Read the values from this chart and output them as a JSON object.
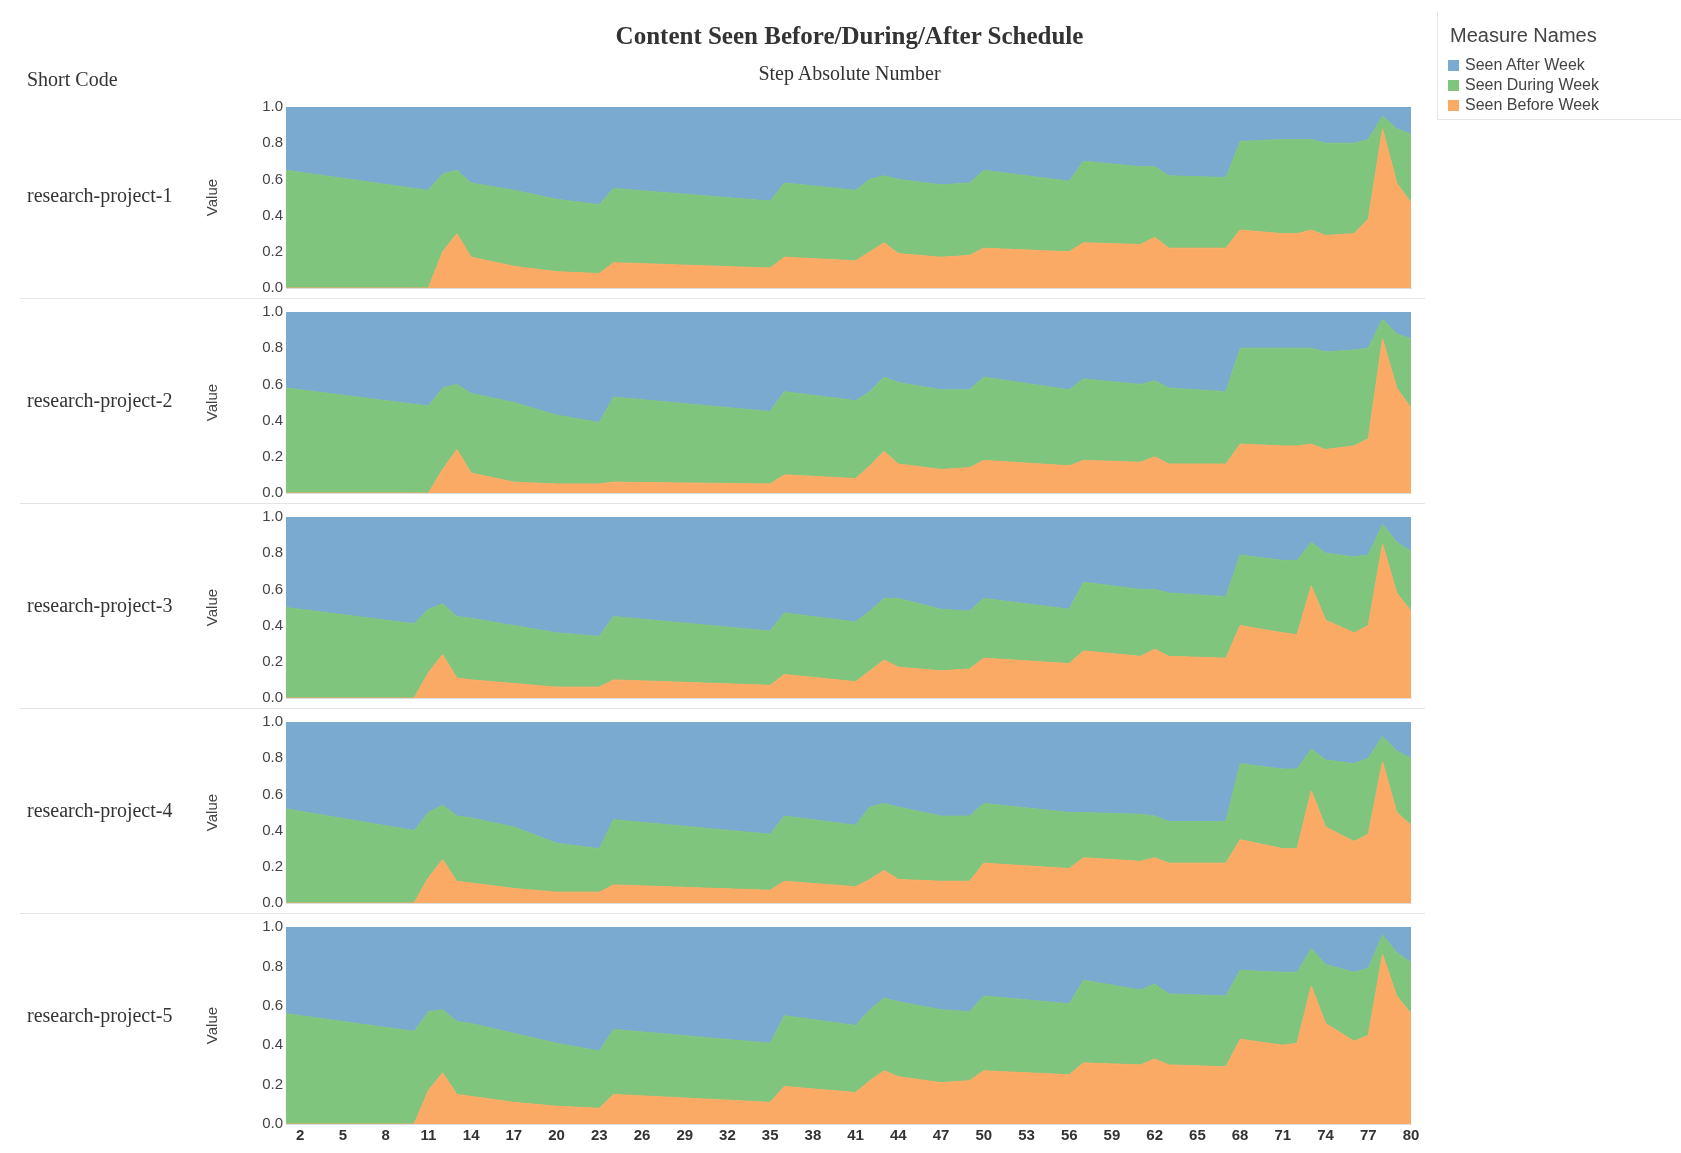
{
  "chart_data": [
    {
      "type": "area",
      "title": "Content Seen Before/During/After Schedule",
      "xlabel": "Step Absolute Number",
      "legend_title": "Measure Names",
      "legend": "right",
      "annotations": [
        "Short Code"
      ],
      "subtitle": "research-project-1",
      "ylabel": "Value",
      "stacked": true,
      "tick_labels": "y",
      "xlim": [
        1,
        80
      ],
      "xticks": [
        2,
        5,
        8,
        11,
        14,
        17,
        20,
        23,
        26,
        29,
        32,
        35,
        38,
        41,
        44,
        47,
        50,
        53,
        56,
        59,
        62,
        65,
        68,
        71,
        74,
        77,
        80
      ],
      "ylim": [
        0,
        1
      ],
      "yticks": [
        {
          "value": 0,
          "label": "0.0"
        },
        {
          "value": 0.2,
          "label": "0.2"
        },
        {
          "value": 0.4,
          "label": "0.4"
        },
        {
          "value": 0.6,
          "label": "0.6"
        },
        {
          "value": 0.8,
          "label": "0.8"
        },
        {
          "value": 1,
          "label": "1.0"
        }
      ],
      "x": [
        1,
        10,
        11,
        12,
        13,
        14,
        17,
        20,
        23,
        24,
        35,
        36,
        41,
        42,
        43,
        44,
        47,
        49,
        50,
        56,
        57,
        61,
        62,
        63,
        67,
        68,
        71,
        72,
        73,
        74,
        76,
        77,
        78,
        79,
        80
      ],
      "series": [
        {
          "name": "Seen Before Week",
          "color": "#fbaa66",
          "values": [
            0,
            0,
            0,
            0.2,
            0.3,
            0.17,
            0.12,
            0.09,
            0.08,
            0.14,
            0.11,
            0.17,
            0.15,
            0.2,
            0.25,
            0.19,
            0.17,
            0.18,
            0.22,
            0.2,
            0.25,
            0.24,
            0.28,
            0.22,
            0.22,
            0.32,
            0.3,
            0.3,
            0.32,
            0.29,
            0.3,
            0.38,
            0.88,
            0.58,
            0.47
          ]
        },
        {
          "name": "Seen During Week",
          "color": "#80c57d",
          "values": [
            0.65,
            0.55,
            0.54,
            0.43,
            0.35,
            0.41,
            0.42,
            0.4,
            0.38,
            0.41,
            0.37,
            0.41,
            0.39,
            0.4,
            0.37,
            0.41,
            0.4,
            0.4,
            0.43,
            0.39,
            0.45,
            0.43,
            0.39,
            0.4,
            0.39,
            0.49,
            0.52,
            0.52,
            0.5,
            0.51,
            0.5,
            0.44,
            0.07,
            0.3,
            0.38
          ]
        },
        {
          "name": "Seen After Week",
          "color": "#7aaad0",
          "values": [
            0.35,
            0.45,
            0.46,
            0.37,
            0.35,
            0.42,
            0.46,
            0.51,
            0.54,
            0.45,
            0.52,
            0.42,
            0.46,
            0.4,
            0.38,
            0.4,
            0.43,
            0.42,
            0.35,
            0.41,
            0.3,
            0.33,
            0.33,
            0.38,
            0.39,
            0.19,
            0.18,
            0.18,
            0.18,
            0.2,
            0.2,
            0.18,
            0.05,
            0.12,
            0.15
          ]
        }
      ]
    },
    {
      "type": "area",
      "subtitle": "research-project-2",
      "ylabel": "Value",
      "stacked": true,
      "tick_labels": "y",
      "xlim": [
        1,
        80
      ],
      "xticks": [
        2,
        5,
        8,
        11,
        14,
        17,
        20,
        23,
        26,
        29,
        32,
        35,
        38,
        41,
        44,
        47,
        50,
        53,
        56,
        59,
        62,
        65,
        68,
        71,
        74,
        77,
        80
      ],
      "ylim": [
        0,
        1
      ],
      "yticks": [
        {
          "value": 0,
          "label": "0.0"
        },
        {
          "value": 0.2,
          "label": "0.2"
        },
        {
          "value": 0.4,
          "label": "0.4"
        },
        {
          "value": 0.6,
          "label": "0.6"
        },
        {
          "value": 0.8,
          "label": "0.8"
        },
        {
          "value": 1,
          "label": "1.0"
        }
      ],
      "x": [
        1,
        10,
        11,
        12,
        13,
        14,
        17,
        20,
        23,
        24,
        35,
        36,
        41,
        42,
        43,
        44,
        47,
        49,
        50,
        56,
        57,
        61,
        62,
        63,
        67,
        68,
        71,
        72,
        73,
        74,
        76,
        77,
        78,
        79,
        80
      ],
      "series": [
        {
          "color": "#fbaa66",
          "values": [
            0,
            0,
            0,
            0.13,
            0.24,
            0.11,
            0.06,
            0.05,
            0.05,
            0.06,
            0.05,
            0.1,
            0.08,
            0.15,
            0.23,
            0.16,
            0.13,
            0.14,
            0.18,
            0.15,
            0.18,
            0.17,
            0.2,
            0.16,
            0.16,
            0.27,
            0.26,
            0.26,
            0.27,
            0.24,
            0.26,
            0.3,
            0.85,
            0.58,
            0.47
          ]
        },
        {
          "color": "#80c57d",
          "values": [
            0.58,
            0.49,
            0.48,
            0.45,
            0.36,
            0.44,
            0.44,
            0.38,
            0.34,
            0.47,
            0.4,
            0.46,
            0.43,
            0.41,
            0.41,
            0.45,
            0.44,
            0.43,
            0.46,
            0.42,
            0.45,
            0.43,
            0.42,
            0.42,
            0.4,
            0.53,
            0.54,
            0.54,
            0.53,
            0.54,
            0.53,
            0.5,
            0.11,
            0.3,
            0.38
          ]
        },
        {
          "color": "#7aaad0",
          "values": [
            0.42,
            0.51,
            0.52,
            0.42,
            0.4,
            0.45,
            0.5,
            0.57,
            0.61,
            0.47,
            0.55,
            0.44,
            0.49,
            0.44,
            0.36,
            0.39,
            0.43,
            0.43,
            0.36,
            0.43,
            0.37,
            0.4,
            0.38,
            0.42,
            0.44,
            0.2,
            0.2,
            0.2,
            0.2,
            0.22,
            0.21,
            0.2,
            0.04,
            0.12,
            0.15
          ]
        }
      ]
    },
    {
      "type": "area",
      "subtitle": "research-project-3",
      "ylabel": "Value",
      "stacked": true,
      "tick_labels": "y",
      "xlim": [
        1,
        80
      ],
      "xticks": [
        2,
        5,
        8,
        11,
        14,
        17,
        20,
        23,
        26,
        29,
        32,
        35,
        38,
        41,
        44,
        47,
        50,
        53,
        56,
        59,
        62,
        65,
        68,
        71,
        74,
        77,
        80
      ],
      "ylim": [
        0,
        1
      ],
      "yticks": [
        {
          "value": 0,
          "label": "0.0"
        },
        {
          "value": 0.2,
          "label": "0.2"
        },
        {
          "value": 0.4,
          "label": "0.4"
        },
        {
          "value": 0.6,
          "label": "0.6"
        },
        {
          "value": 0.8,
          "label": "0.8"
        },
        {
          "value": 1,
          "label": "1.0"
        }
      ],
      "x": [
        1,
        10,
        11,
        12,
        13,
        14,
        17,
        20,
        23,
        24,
        35,
        36,
        41,
        42,
        43,
        44,
        47,
        49,
        50,
        56,
        57,
        61,
        62,
        63,
        67,
        68,
        71,
        72,
        73,
        74,
        76,
        77,
        78,
        79,
        80
      ],
      "series": [
        {
          "color": "#fbaa66",
          "values": [
            0,
            0,
            0.14,
            0.24,
            0.11,
            0.1,
            0.08,
            0.06,
            0.06,
            0.1,
            0.07,
            0.13,
            0.09,
            0.15,
            0.21,
            0.17,
            0.15,
            0.16,
            0.22,
            0.19,
            0.26,
            0.23,
            0.27,
            0.23,
            0.22,
            0.4,
            0.36,
            0.35,
            0.62,
            0.43,
            0.36,
            0.4,
            0.85,
            0.58,
            0.48
          ]
        },
        {
          "color": "#80c57d",
          "values": [
            0.5,
            0.41,
            0.35,
            0.28,
            0.34,
            0.34,
            0.32,
            0.3,
            0.28,
            0.35,
            0.3,
            0.34,
            0.33,
            0.33,
            0.34,
            0.38,
            0.34,
            0.32,
            0.33,
            0.3,
            0.38,
            0.37,
            0.33,
            0.35,
            0.34,
            0.39,
            0.4,
            0.41,
            0.24,
            0.37,
            0.42,
            0.39,
            0.11,
            0.28,
            0.33
          ]
        },
        {
          "color": "#7aaad0",
          "values": [
            0.5,
            0.59,
            0.51,
            0.48,
            0.55,
            0.56,
            0.6,
            0.64,
            0.66,
            0.55,
            0.63,
            0.53,
            0.58,
            0.52,
            0.45,
            0.45,
            0.51,
            0.52,
            0.45,
            0.51,
            0.36,
            0.4,
            0.4,
            0.42,
            0.44,
            0.21,
            0.24,
            0.24,
            0.14,
            0.2,
            0.22,
            0.21,
            0.04,
            0.14,
            0.19
          ]
        }
      ]
    },
    {
      "type": "area",
      "subtitle": "research-project-4",
      "ylabel": "Value",
      "stacked": true,
      "tick_labels": "y",
      "xlim": [
        1,
        80
      ],
      "xticks": [
        2,
        5,
        8,
        11,
        14,
        17,
        20,
        23,
        26,
        29,
        32,
        35,
        38,
        41,
        44,
        47,
        50,
        53,
        56,
        59,
        62,
        65,
        68,
        71,
        74,
        77,
        80
      ],
      "ylim": [
        0,
        1
      ],
      "yticks": [
        {
          "value": 0,
          "label": "0.0"
        },
        {
          "value": 0.2,
          "label": "0.2"
        },
        {
          "value": 0.4,
          "label": "0.4"
        },
        {
          "value": 0.6,
          "label": "0.6"
        },
        {
          "value": 0.8,
          "label": "0.8"
        },
        {
          "value": 1,
          "label": "1.0"
        }
      ],
      "x": [
        1,
        10,
        11,
        12,
        13,
        14,
        17,
        20,
        23,
        24,
        35,
        36,
        41,
        42,
        43,
        44,
        47,
        49,
        50,
        56,
        57,
        61,
        62,
        63,
        67,
        68,
        71,
        72,
        73,
        74,
        76,
        77,
        78,
        79,
        80
      ],
      "series": [
        {
          "color": "#fbaa66",
          "values": [
            0,
            0,
            0.14,
            0.24,
            0.12,
            0.11,
            0.08,
            0.06,
            0.06,
            0.1,
            0.07,
            0.12,
            0.09,
            0.13,
            0.18,
            0.13,
            0.12,
            0.12,
            0.22,
            0.19,
            0.25,
            0.23,
            0.25,
            0.22,
            0.22,
            0.35,
            0.3,
            0.3,
            0.62,
            0.42,
            0.34,
            0.38,
            0.78,
            0.5,
            0.43
          ]
        },
        {
          "color": "#80c57d",
          "values": [
            0.52,
            0.4,
            0.36,
            0.3,
            0.36,
            0.36,
            0.34,
            0.27,
            0.24,
            0.36,
            0.31,
            0.36,
            0.34,
            0.4,
            0.37,
            0.4,
            0.36,
            0.36,
            0.33,
            0.31,
            0.25,
            0.26,
            0.23,
            0.23,
            0.23,
            0.42,
            0.44,
            0.44,
            0.23,
            0.37,
            0.43,
            0.42,
            0.14,
            0.34,
            0.37
          ]
        },
        {
          "color": "#7aaad0",
          "values": [
            0.48,
            0.6,
            0.5,
            0.46,
            0.52,
            0.53,
            0.58,
            0.67,
            0.7,
            0.54,
            0.62,
            0.52,
            0.57,
            0.47,
            0.45,
            0.47,
            0.52,
            0.52,
            0.45,
            0.5,
            0.5,
            0.51,
            0.52,
            0.55,
            0.55,
            0.23,
            0.26,
            0.26,
            0.15,
            0.21,
            0.23,
            0.2,
            0.08,
            0.16,
            0.2
          ]
        }
      ]
    },
    {
      "type": "area",
      "subtitle": "research-project-5",
      "ylabel": "Value",
      "stacked": true,
      "xlim": [
        1,
        80
      ],
      "xticks": [
        2,
        5,
        8,
        11,
        14,
        17,
        20,
        23,
        26,
        29,
        32,
        35,
        38,
        41,
        44,
        47,
        50,
        53,
        56,
        59,
        62,
        65,
        68,
        71,
        74,
        77,
        80
      ],
      "ylim": [
        0,
        1
      ],
      "yticks": [
        {
          "value": 0,
          "label": "0.0"
        },
        {
          "value": 0.2,
          "label": "0.2"
        },
        {
          "value": 0.4,
          "label": "0.4"
        },
        {
          "value": 0.6,
          "label": "0.6"
        },
        {
          "value": 0.8,
          "label": "0.8"
        },
        {
          "value": 1,
          "label": "1.0"
        }
      ],
      "x": [
        1,
        10,
        11,
        12,
        13,
        14,
        17,
        20,
        23,
        24,
        35,
        36,
        41,
        42,
        43,
        44,
        47,
        49,
        50,
        56,
        57,
        61,
        62,
        63,
        67,
        68,
        71,
        72,
        73,
        74,
        76,
        77,
        78,
        79,
        80
      ],
      "series": [
        {
          "color": "#fbaa66",
          "values": [
            0,
            0,
            0.17,
            0.26,
            0.15,
            0.14,
            0.11,
            0.09,
            0.08,
            0.15,
            0.11,
            0.19,
            0.16,
            0.22,
            0.27,
            0.24,
            0.21,
            0.22,
            0.27,
            0.25,
            0.31,
            0.3,
            0.33,
            0.3,
            0.29,
            0.43,
            0.4,
            0.41,
            0.7,
            0.51,
            0.42,
            0.45,
            0.86,
            0.65,
            0.56
          ]
        },
        {
          "color": "#80c57d",
          "values": [
            0.56,
            0.47,
            0.4,
            0.32,
            0.37,
            0.37,
            0.35,
            0.32,
            0.29,
            0.33,
            0.3,
            0.36,
            0.34,
            0.36,
            0.37,
            0.38,
            0.37,
            0.35,
            0.38,
            0.36,
            0.42,
            0.38,
            0.38,
            0.36,
            0.36,
            0.35,
            0.37,
            0.36,
            0.19,
            0.3,
            0.35,
            0.34,
            0.1,
            0.22,
            0.26
          ]
        },
        {
          "color": "#7aaad0",
          "values": [
            0.44,
            0.53,
            0.43,
            0.42,
            0.48,
            0.49,
            0.54,
            0.59,
            0.63,
            0.52,
            0.59,
            0.45,
            0.5,
            0.42,
            0.36,
            0.38,
            0.42,
            0.43,
            0.35,
            0.39,
            0.27,
            0.32,
            0.29,
            0.34,
            0.35,
            0.22,
            0.23,
            0.23,
            0.11,
            0.19,
            0.23,
            0.21,
            0.04,
            0.13,
            0.18
          ]
        }
      ]
    }
  ]
}
